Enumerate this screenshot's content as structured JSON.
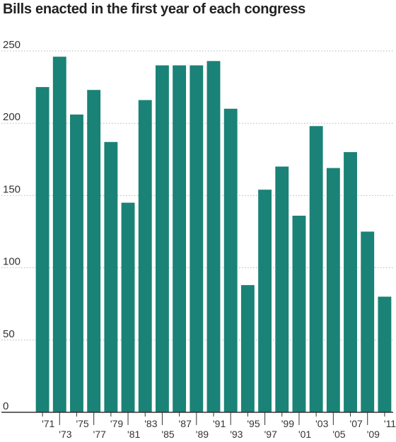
{
  "chart_data": {
    "type": "bar",
    "title": "Bills enacted in the first year of each congress",
    "categories": [
      "'71",
      "'73",
      "'75",
      "'77",
      "'79",
      "'81",
      "'83",
      "'85",
      "'87",
      "'89",
      "'91",
      "'93",
      "'95",
      "'97",
      "'99",
      "'01",
      "'03",
      "'05",
      "'07",
      "'09",
      "'11"
    ],
    "values": [
      225,
      246,
      206,
      223,
      187,
      145,
      216,
      240,
      240,
      240,
      243,
      210,
      88,
      154,
      170,
      136,
      198,
      169,
      180,
      125,
      80
    ],
    "ylim": [
      0,
      250
    ],
    "yticks": [
      "0",
      "50",
      "100",
      "150",
      "200",
      "250"
    ],
    "bar_color": "#1a8276",
    "grid": true,
    "xlabel": "",
    "ylabel": ""
  }
}
